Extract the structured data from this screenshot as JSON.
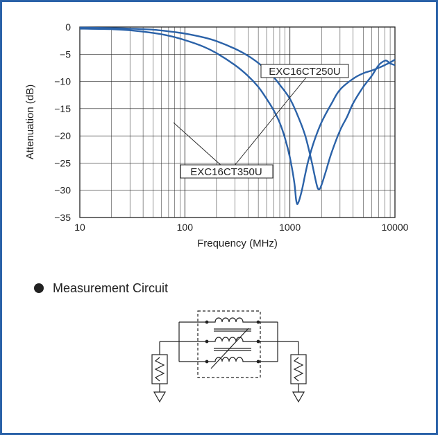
{
  "chart_data": {
    "type": "line",
    "xlabel": "Frequency (MHz)",
    "ylabel": "Attenuation  (dB)",
    "x_scale": "log",
    "xlim": [
      10,
      10000
    ],
    "ylim": [
      -35,
      0
    ],
    "x_ticks": [
      10,
      100,
      1000,
      10000
    ],
    "x_tick_labels": [
      "10",
      "100",
      "1000",
      "10000"
    ],
    "y_ticks": [
      0,
      -5,
      -10,
      -15,
      -20,
      -25,
      -30,
      -35
    ],
    "y_tick_labels": [
      "0",
      "−5",
      "−10",
      "−15",
      "−20",
      "−25",
      "−30",
      "−35"
    ],
    "grid": true,
    "series": [
      {
        "name": "EXC16CT350U",
        "color": "#2b62a8",
        "x": [
          10,
          20,
          30,
          50,
          70,
          100,
          150,
          200,
          300,
          400,
          500,
          600,
          700,
          800,
          900,
          1000,
          1100,
          1150,
          1200,
          1300,
          1400,
          1500,
          1700,
          2000,
          2500,
          3000,
          4000,
          5000,
          6000,
          7000,
          8000,
          9000,
          10000
        ],
        "values": [
          -0.3,
          -0.4,
          -0.6,
          -1.1,
          -1.6,
          -2.4,
          -3.6,
          -4.8,
          -7.0,
          -9.0,
          -11.0,
          -13.2,
          -15.3,
          -17.6,
          -20.5,
          -24.0,
          -28.5,
          -32.0,
          -32.3,
          -30.0,
          -27.0,
          -24.5,
          -21.0,
          -17.5,
          -14.0,
          -11.5,
          -9.5,
          -8.5,
          -8.0,
          -7.5,
          -7.0,
          -6.5,
          -6.0
        ]
      },
      {
        "name": "EXC16CT250U",
        "color": "#2b62a8",
        "x": [
          10,
          20,
          30,
          50,
          70,
          100,
          150,
          200,
          300,
          400,
          500,
          600,
          700,
          800,
          1000,
          1200,
          1400,
          1600,
          1800,
          1900,
          2000,
          2200,
          2500,
          3000,
          3500,
          4000,
          5000,
          6000,
          7000,
          8000,
          8500,
          9000,
          10000
        ],
        "values": [
          -0.1,
          -0.2,
          -0.3,
          -0.5,
          -0.8,
          -1.2,
          -1.9,
          -2.6,
          -4.0,
          -5.3,
          -6.6,
          -7.9,
          -9.2,
          -10.6,
          -13.2,
          -16.5,
          -20.0,
          -24.5,
          -29.0,
          -29.8,
          -29.0,
          -26.5,
          -23.0,
          -19.0,
          -16.5,
          -14.0,
          -11.0,
          -9.0,
          -7.0,
          -6.2,
          -6.3,
          -6.7,
          -7.0
        ]
      }
    ],
    "annotations": [
      {
        "text": "EXC16CT250U",
        "series": "EXC16CT250U"
      },
      {
        "text": "EXC16CT350U",
        "series": "EXC16CT350U"
      }
    ]
  },
  "circuit": {
    "title": "Measurement Circuit",
    "bullet_color": "#222222"
  },
  "colors": {
    "frame": "#2b62a8",
    "curve": "#2b62a8",
    "grid": "#222222"
  }
}
